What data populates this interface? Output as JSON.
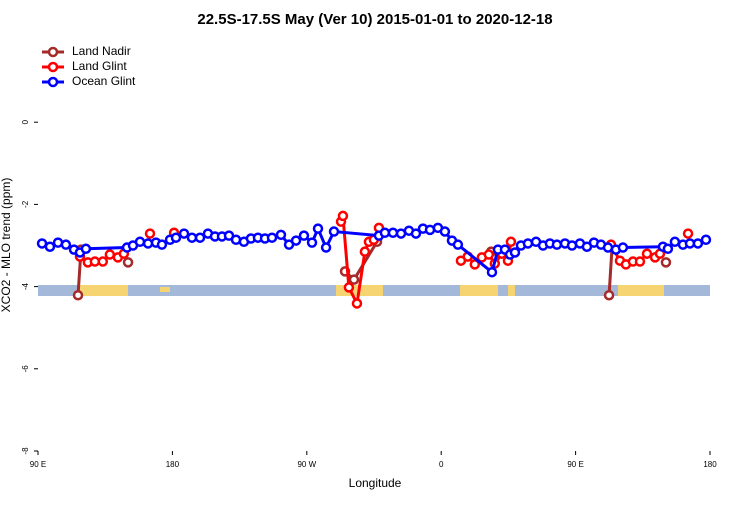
{
  "chart_data": {
    "type": "line",
    "title": "22.5S-17.5S May (Ver 10)   2015-01-01 to 2020-12-18",
    "x_label": "Longitude",
    "y_label": "XCO2 - MLO trend (ppm)",
    "xlim": [
      90,
      540
    ],
    "xticks": [
      {
        "value": 90,
        "label": "90 E"
      },
      180,
      {
        "value": 270,
        "label": "90 W"
      },
      {
        "value": 360,
        "label": "0"
      },
      {
        "value": 450,
        "label": "90 E"
      },
      {
        "value": 540,
        "label": "180"
      }
    ],
    "ylim": [
      -8,
      2
    ],
    "yticks": [
      -8,
      -6,
      -4,
      -2,
      0
    ],
    "legend": "top-left",
    "series": [
      {
        "name": "Land Nadir",
        "color": "#a52a2a",
        "x": [
          116.8,
          118.8,
          null,
          150.3,
          null,
          295.6,
          301.6,
          317.0,
          null,
          393.4,
          null,
          472.4,
          474.4,
          null,
          510.5
        ],
        "values": [
          -4.21,
          -3.1,
          null,
          -3.41,
          null,
          -3.63,
          -3.83,
          -2.91,
          null,
          -3.15,
          null,
          -4.21,
          -3.05,
          null,
          -3.41
        ]
      },
      {
        "name": "Land Glint",
        "color": "#ff0000",
        "x": [
          118.1,
          123.4,
          128.1,
          133.4,
          138.1,
          143.5,
          147.5,
          null,
          165.0,
          null,
          181.1,
          null,
          292.9,
          294.2,
          298.2,
          303.6,
          308.9,
          311.6,
          314.9,
          318.3,
          null,
          373.2,
          377.8,
          382.5,
          387.2,
          391.9,
          395.9,
          400.6,
          404.7,
          406.7,
          null,
          473.7,
          479.7,
          483.7,
          488.4,
          493.1,
          497.8,
          503.2,
          506.5,
          null,
          525.3
        ],
        "values": [
          -3.27,
          -3.41,
          -3.39,
          -3.39,
          -3.22,
          -3.29,
          -3.2,
          null,
          -2.71,
          null,
          -2.69,
          null,
          -2.42,
          -2.28,
          -4.02,
          -4.41,
          -3.15,
          -2.91,
          -2.86,
          -2.57,
          null,
          -3.37,
          -3.27,
          -3.46,
          -3.29,
          -3.22,
          -3.44,
          -3.2,
          -3.37,
          -2.91,
          null,
          -2.98,
          -3.37,
          -3.46,
          -3.39,
          -3.39,
          -3.2,
          -3.29,
          -3.2,
          null,
          -2.71
        ]
      },
      {
        "name": "Ocean Glint",
        "color": "#0000ff",
        "x": [
          92.7,
          98.0,
          103.4,
          108.7,
          114.1,
          118.1,
          122.1,
          149.6,
          153.6,
          158.3,
          163.7,
          169.0,
          173.0,
          178.4,
          182.4,
          187.8,
          193.1,
          198.5,
          203.8,
          208.5,
          213.2,
          217.9,
          222.6,
          227.9,
          232.6,
          237.3,
          242.0,
          246.7,
          252.7,
          258.1,
          262.8,
          268.1,
          273.5,
          277.5,
          282.9,
          288.2,
          318.3,
          322.3,
          327.7,
          333.1,
          338.4,
          343.1,
          347.8,
          352.5,
          357.8,
          362.5,
          367.2,
          371.2,
          394.0,
          398.0,
          402.7,
          406.1,
          409.4,
          413.4,
          418.1,
          423.5,
          428.2,
          432.8,
          437.5,
          442.9,
          447.6,
          452.9,
          457.6,
          462.3,
          467.0,
          471.7,
          477.0,
          481.7,
          508.5,
          511.8,
          516.5,
          521.9,
          526.6,
          531.9,
          537.3
        ],
        "values": [
          -2.95,
          -3.03,
          -2.93,
          -2.98,
          -3.1,
          -3.17,
          -3.08,
          -3.05,
          -3.0,
          -2.91,
          -2.95,
          -2.93,
          -2.98,
          -2.86,
          -2.81,
          -2.71,
          -2.81,
          -2.81,
          -2.71,
          -2.78,
          -2.78,
          -2.76,
          -2.86,
          -2.91,
          -2.83,
          -2.81,
          -2.83,
          -2.81,
          -2.74,
          -2.98,
          -2.88,
          -2.76,
          -2.93,
          -2.59,
          -3.05,
          -2.66,
          -2.76,
          -2.69,
          -2.69,
          -2.71,
          -2.64,
          -2.71,
          -2.59,
          -2.62,
          -2.57,
          -2.66,
          -2.88,
          -2.98,
          -3.65,
          -3.1,
          -3.1,
          -3.22,
          -3.17,
          -3.0,
          -2.95,
          -2.91,
          -3.0,
          -2.95,
          -2.98,
          -2.95,
          -3.0,
          -2.95,
          -3.03,
          -2.93,
          -2.98,
          -3.05,
          -3.1,
          -3.05,
          -3.03,
          -3.08,
          -2.91,
          -2.98,
          -2.95,
          -2.95,
          -2.86
        ]
      }
    ]
  }
}
